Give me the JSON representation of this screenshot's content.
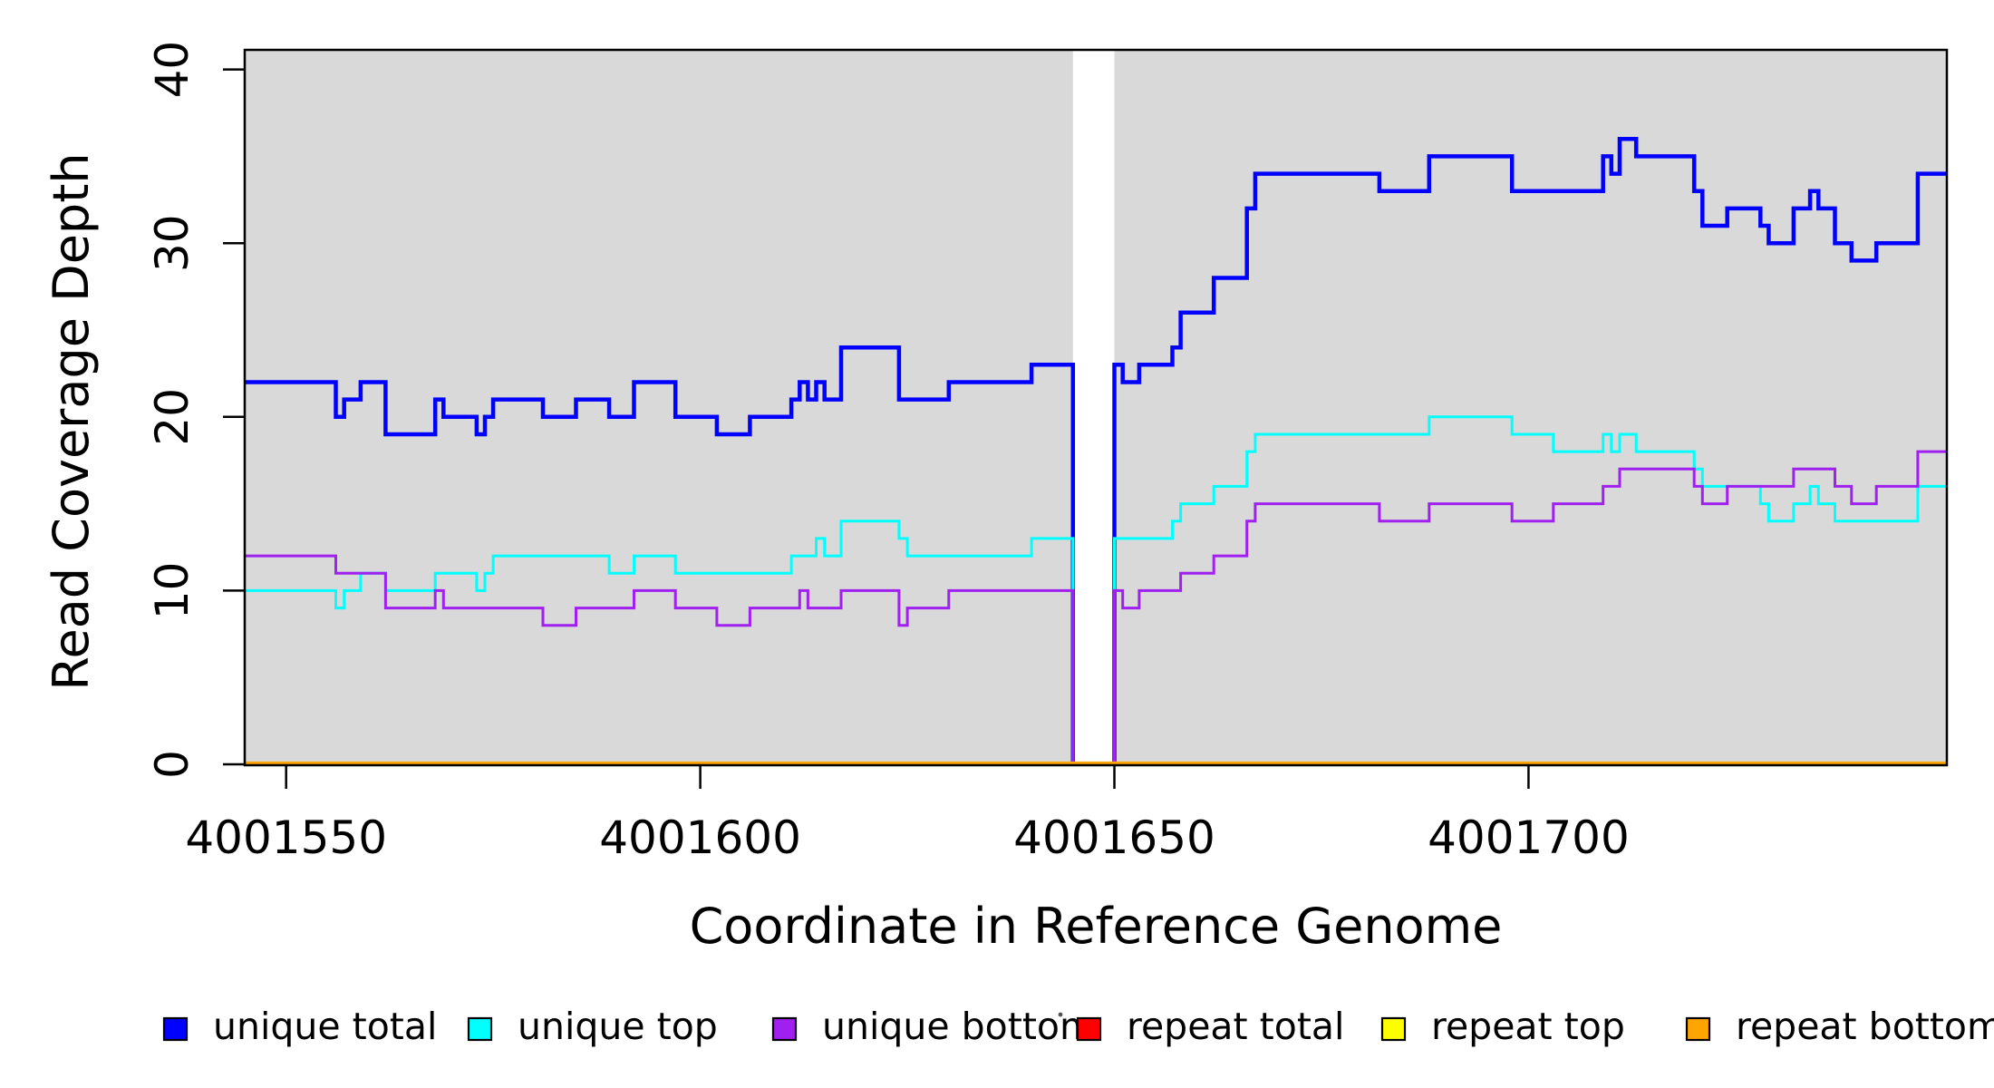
{
  "figure": {
    "xlabel": "Coordinate in Reference Genome",
    "ylabel": "Read Coverage Depth"
  },
  "chart_data": {
    "type": "line",
    "subtype": "step-coverage-plot",
    "title": "",
    "xlabel": "Coordinate in Reference Genome",
    "ylabel": "Read Coverage Depth",
    "xlim": [
      4001545,
      4001750.4
    ],
    "ylim": [
      0,
      41
    ],
    "x_ticks": [
      {
        "value": 4001550,
        "label": "4001550"
      },
      {
        "value": 4001600,
        "label": "4001600"
      },
      {
        "value": 4001650,
        "label": "4001650"
      },
      {
        "value": 4001700,
        "label": "4001700"
      }
    ],
    "y_ticks": [
      {
        "value": 0,
        "label": "0"
      },
      {
        "value": 10,
        "label": "10"
      },
      {
        "value": 20,
        "label": "20"
      },
      {
        "value": 30,
        "label": "30"
      },
      {
        "value": 40,
        "label": "40"
      }
    ],
    "grid": false,
    "plot_background": "#D9D9D9",
    "gap_region": {
      "start": 4001645,
      "end": 4001650,
      "color": "#FFFFFF"
    },
    "legend_position": "bottom",
    "legend": [
      {
        "label": "unique total",
        "color": "#0000FF"
      },
      {
        "label": "unique top",
        "color": "#00FFFF"
      },
      {
        "label": "unique bottom",
        "color": "#A020F0"
      },
      {
        "label": "repeat total",
        "color": "#FF0000"
      },
      {
        "label": "repeat top",
        "color": "#FFFF00"
      },
      {
        "label": "repeat bottom",
        "color": "#FFA500"
      }
    ],
    "series": [
      {
        "name": "unique total",
        "color": "#0000FF",
        "width": 4.5,
        "steps": [
          [
            4001545,
            22
          ],
          [
            4001556,
            20
          ],
          [
            4001557,
            21
          ],
          [
            4001559,
            22
          ],
          [
            4001562,
            19
          ],
          [
            4001568,
            21
          ],
          [
            4001569,
            20
          ],
          [
            4001573,
            19
          ],
          [
            4001574,
            20
          ],
          [
            4001575,
            21
          ],
          [
            4001581,
            20
          ],
          [
            4001585,
            21
          ],
          [
            4001589,
            20
          ],
          [
            4001592,
            22
          ],
          [
            4001597,
            20
          ],
          [
            4001602,
            19
          ],
          [
            4001606,
            20
          ],
          [
            4001611,
            21
          ],
          [
            4001612,
            22
          ],
          [
            4001613,
            21
          ],
          [
            4001614,
            22
          ],
          [
            4001615,
            21
          ],
          [
            4001617,
            24
          ],
          [
            4001624,
            21
          ],
          [
            4001630,
            22
          ],
          [
            4001640,
            23
          ],
          [
            4001645,
            0
          ],
          [
            4001650,
            23
          ],
          [
            4001651,
            22
          ],
          [
            4001653,
            23
          ],
          [
            4001657,
            24
          ],
          [
            4001658,
            26
          ],
          [
            4001662,
            28
          ],
          [
            4001666,
            32
          ],
          [
            4001667,
            34
          ],
          [
            4001682,
            33
          ],
          [
            4001688,
            35
          ],
          [
            4001698,
            33
          ],
          [
            4001709,
            35
          ],
          [
            4001710,
            34
          ],
          [
            4001711,
            36
          ],
          [
            4001713,
            35
          ],
          [
            4001720,
            33
          ],
          [
            4001721,
            31
          ],
          [
            4001724,
            32
          ],
          [
            4001728,
            31
          ],
          [
            4001729,
            30
          ],
          [
            4001732,
            32
          ],
          [
            4001734,
            33
          ],
          [
            4001735,
            32
          ],
          [
            4001737,
            30
          ],
          [
            4001739,
            29
          ],
          [
            4001742,
            30
          ],
          [
            4001747,
            34
          ]
        ]
      },
      {
        "name": "unique top",
        "color": "#00FFFF",
        "width": 3,
        "steps": [
          [
            4001545,
            10
          ],
          [
            4001556,
            9
          ],
          [
            4001557,
            10
          ],
          [
            4001559,
            11
          ],
          [
            4001562,
            10
          ],
          [
            4001568,
            11
          ],
          [
            4001573,
            10
          ],
          [
            4001574,
            11
          ],
          [
            4001575,
            12
          ],
          [
            4001589,
            11
          ],
          [
            4001592,
            12
          ],
          [
            4001597,
            11
          ],
          [
            4001611,
            12
          ],
          [
            4001614,
            13
          ],
          [
            4001615,
            12
          ],
          [
            4001617,
            14
          ],
          [
            4001624,
            13
          ],
          [
            4001625,
            12
          ],
          [
            4001640,
            13
          ],
          [
            4001645,
            0
          ],
          [
            4001650,
            13
          ],
          [
            4001657,
            14
          ],
          [
            4001658,
            15
          ],
          [
            4001662,
            16
          ],
          [
            4001666,
            18
          ],
          [
            4001667,
            19
          ],
          [
            4001688,
            20
          ],
          [
            4001698,
            19
          ],
          [
            4001703,
            18
          ],
          [
            4001709,
            19
          ],
          [
            4001710,
            18
          ],
          [
            4001711,
            19
          ],
          [
            4001713,
            18
          ],
          [
            4001720,
            17
          ],
          [
            4001721,
            16
          ],
          [
            4001728,
            15
          ],
          [
            4001729,
            14
          ],
          [
            4001732,
            15
          ],
          [
            4001734,
            16
          ],
          [
            4001735,
            15
          ],
          [
            4001737,
            14
          ],
          [
            4001747,
            16
          ]
        ]
      },
      {
        "name": "unique bottom",
        "color": "#A020F0",
        "width": 3,
        "steps": [
          [
            4001545,
            12
          ],
          [
            4001556,
            11
          ],
          [
            4001562,
            9
          ],
          [
            4001568,
            10
          ],
          [
            4001569,
            9
          ],
          [
            4001581,
            8
          ],
          [
            4001585,
            9
          ],
          [
            4001592,
            10
          ],
          [
            4001597,
            9
          ],
          [
            4001602,
            8
          ],
          [
            4001606,
            9
          ],
          [
            4001612,
            10
          ],
          [
            4001613,
            9
          ],
          [
            4001617,
            10
          ],
          [
            4001624,
            8
          ],
          [
            4001625,
            9
          ],
          [
            4001630,
            10
          ],
          [
            4001645,
            0
          ],
          [
            4001650,
            10
          ],
          [
            4001651,
            9
          ],
          [
            4001653,
            10
          ],
          [
            4001658,
            11
          ],
          [
            4001662,
            12
          ],
          [
            4001666,
            14
          ],
          [
            4001667,
            15
          ],
          [
            4001682,
            14
          ],
          [
            4001688,
            15
          ],
          [
            4001698,
            14
          ],
          [
            4001703,
            15
          ],
          [
            4001709,
            16
          ],
          [
            4001711,
            17
          ],
          [
            4001720,
            16
          ],
          [
            4001721,
            15
          ],
          [
            4001724,
            16
          ],
          [
            4001732,
            17
          ],
          [
            4001737,
            16
          ],
          [
            4001739,
            15
          ],
          [
            4001742,
            16
          ],
          [
            4001747,
            18
          ]
        ]
      },
      {
        "name": "repeat total",
        "color": "#FF0000",
        "width": 3,
        "steps": [
          [
            4001545,
            0
          ]
        ]
      },
      {
        "name": "repeat top",
        "color": "#FFFF00",
        "width": 3,
        "steps": [
          [
            4001545,
            0
          ]
        ]
      },
      {
        "name": "repeat bottom",
        "color": "#FFA500",
        "width": 3.5,
        "steps": [
          [
            4001545,
            0
          ]
        ]
      }
    ]
  }
}
